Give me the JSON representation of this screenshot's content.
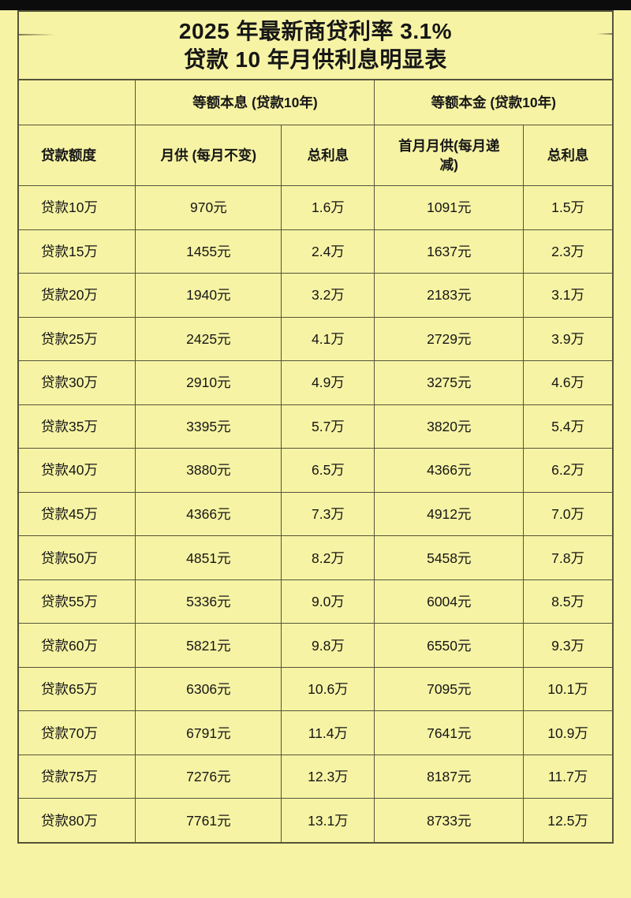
{
  "page": {
    "background_color": "#f6f3a4",
    "line_color": "#55543b",
    "top_bar_color": "#0c0c0c"
  },
  "title": {
    "line1": "2025 年最新商贷利率 3.1%",
    "line2": "贷款 10 年月供利息明显表"
  },
  "chart_data": {
    "type": "table",
    "title": "2025 年最新商贷利率 3.1% 贷款 10 年月供利息明显表",
    "column_groups": [
      "等额本息 (贷款10年)",
      "等额本金 (贷款10年)"
    ],
    "columns": [
      "贷款额度",
      "月供 (每月不变)",
      "总利息",
      "首月月供(每月递减)",
      "总利息"
    ],
    "rows": [
      [
        "贷款10万",
        "970元",
        "1.6万",
        "1091元",
        "1.5万"
      ],
      [
        "贷款15万",
        "1455元",
        "2.4万",
        "1637元",
        "2.3万"
      ],
      [
        "货款20万",
        "1940元",
        "3.2万",
        "2183元",
        "3.1万"
      ],
      [
        "贷款25万",
        "2425元",
        "4.1万",
        "2729元",
        "3.9万"
      ],
      [
        "贷款30万",
        "2910元",
        "4.9万",
        "3275元",
        "4.6万"
      ],
      [
        "贷款35万",
        "3395元",
        "5.7万",
        "3820元",
        "5.4万"
      ],
      [
        "贷款40万",
        "3880元",
        "6.5万",
        "4366元",
        "6.2万"
      ],
      [
        "贷款45万",
        "4366元",
        "7.3万",
        "4912元",
        "7.0万"
      ],
      [
        "贷款50万",
        "4851元",
        "8.2万",
        "5458元",
        "7.8万"
      ],
      [
        "贷款55万",
        "5336元",
        "9.0万",
        "6004元",
        "8.5万"
      ],
      [
        "贷款60万",
        "5821元",
        "9.8万",
        "6550元",
        "9.3万"
      ],
      [
        "贷款65万",
        "6306元",
        "10.6万",
        "7095元",
        "10.1万"
      ],
      [
        "贷款70万",
        "6791元",
        "11.4万",
        "7641元",
        "10.9万"
      ],
      [
        "贷款75万",
        "7276元",
        "12.3万",
        "8187元",
        "11.7万"
      ],
      [
        "贷款80万",
        "7761元",
        "13.1万",
        "8733元",
        "12.5万"
      ]
    ]
  }
}
